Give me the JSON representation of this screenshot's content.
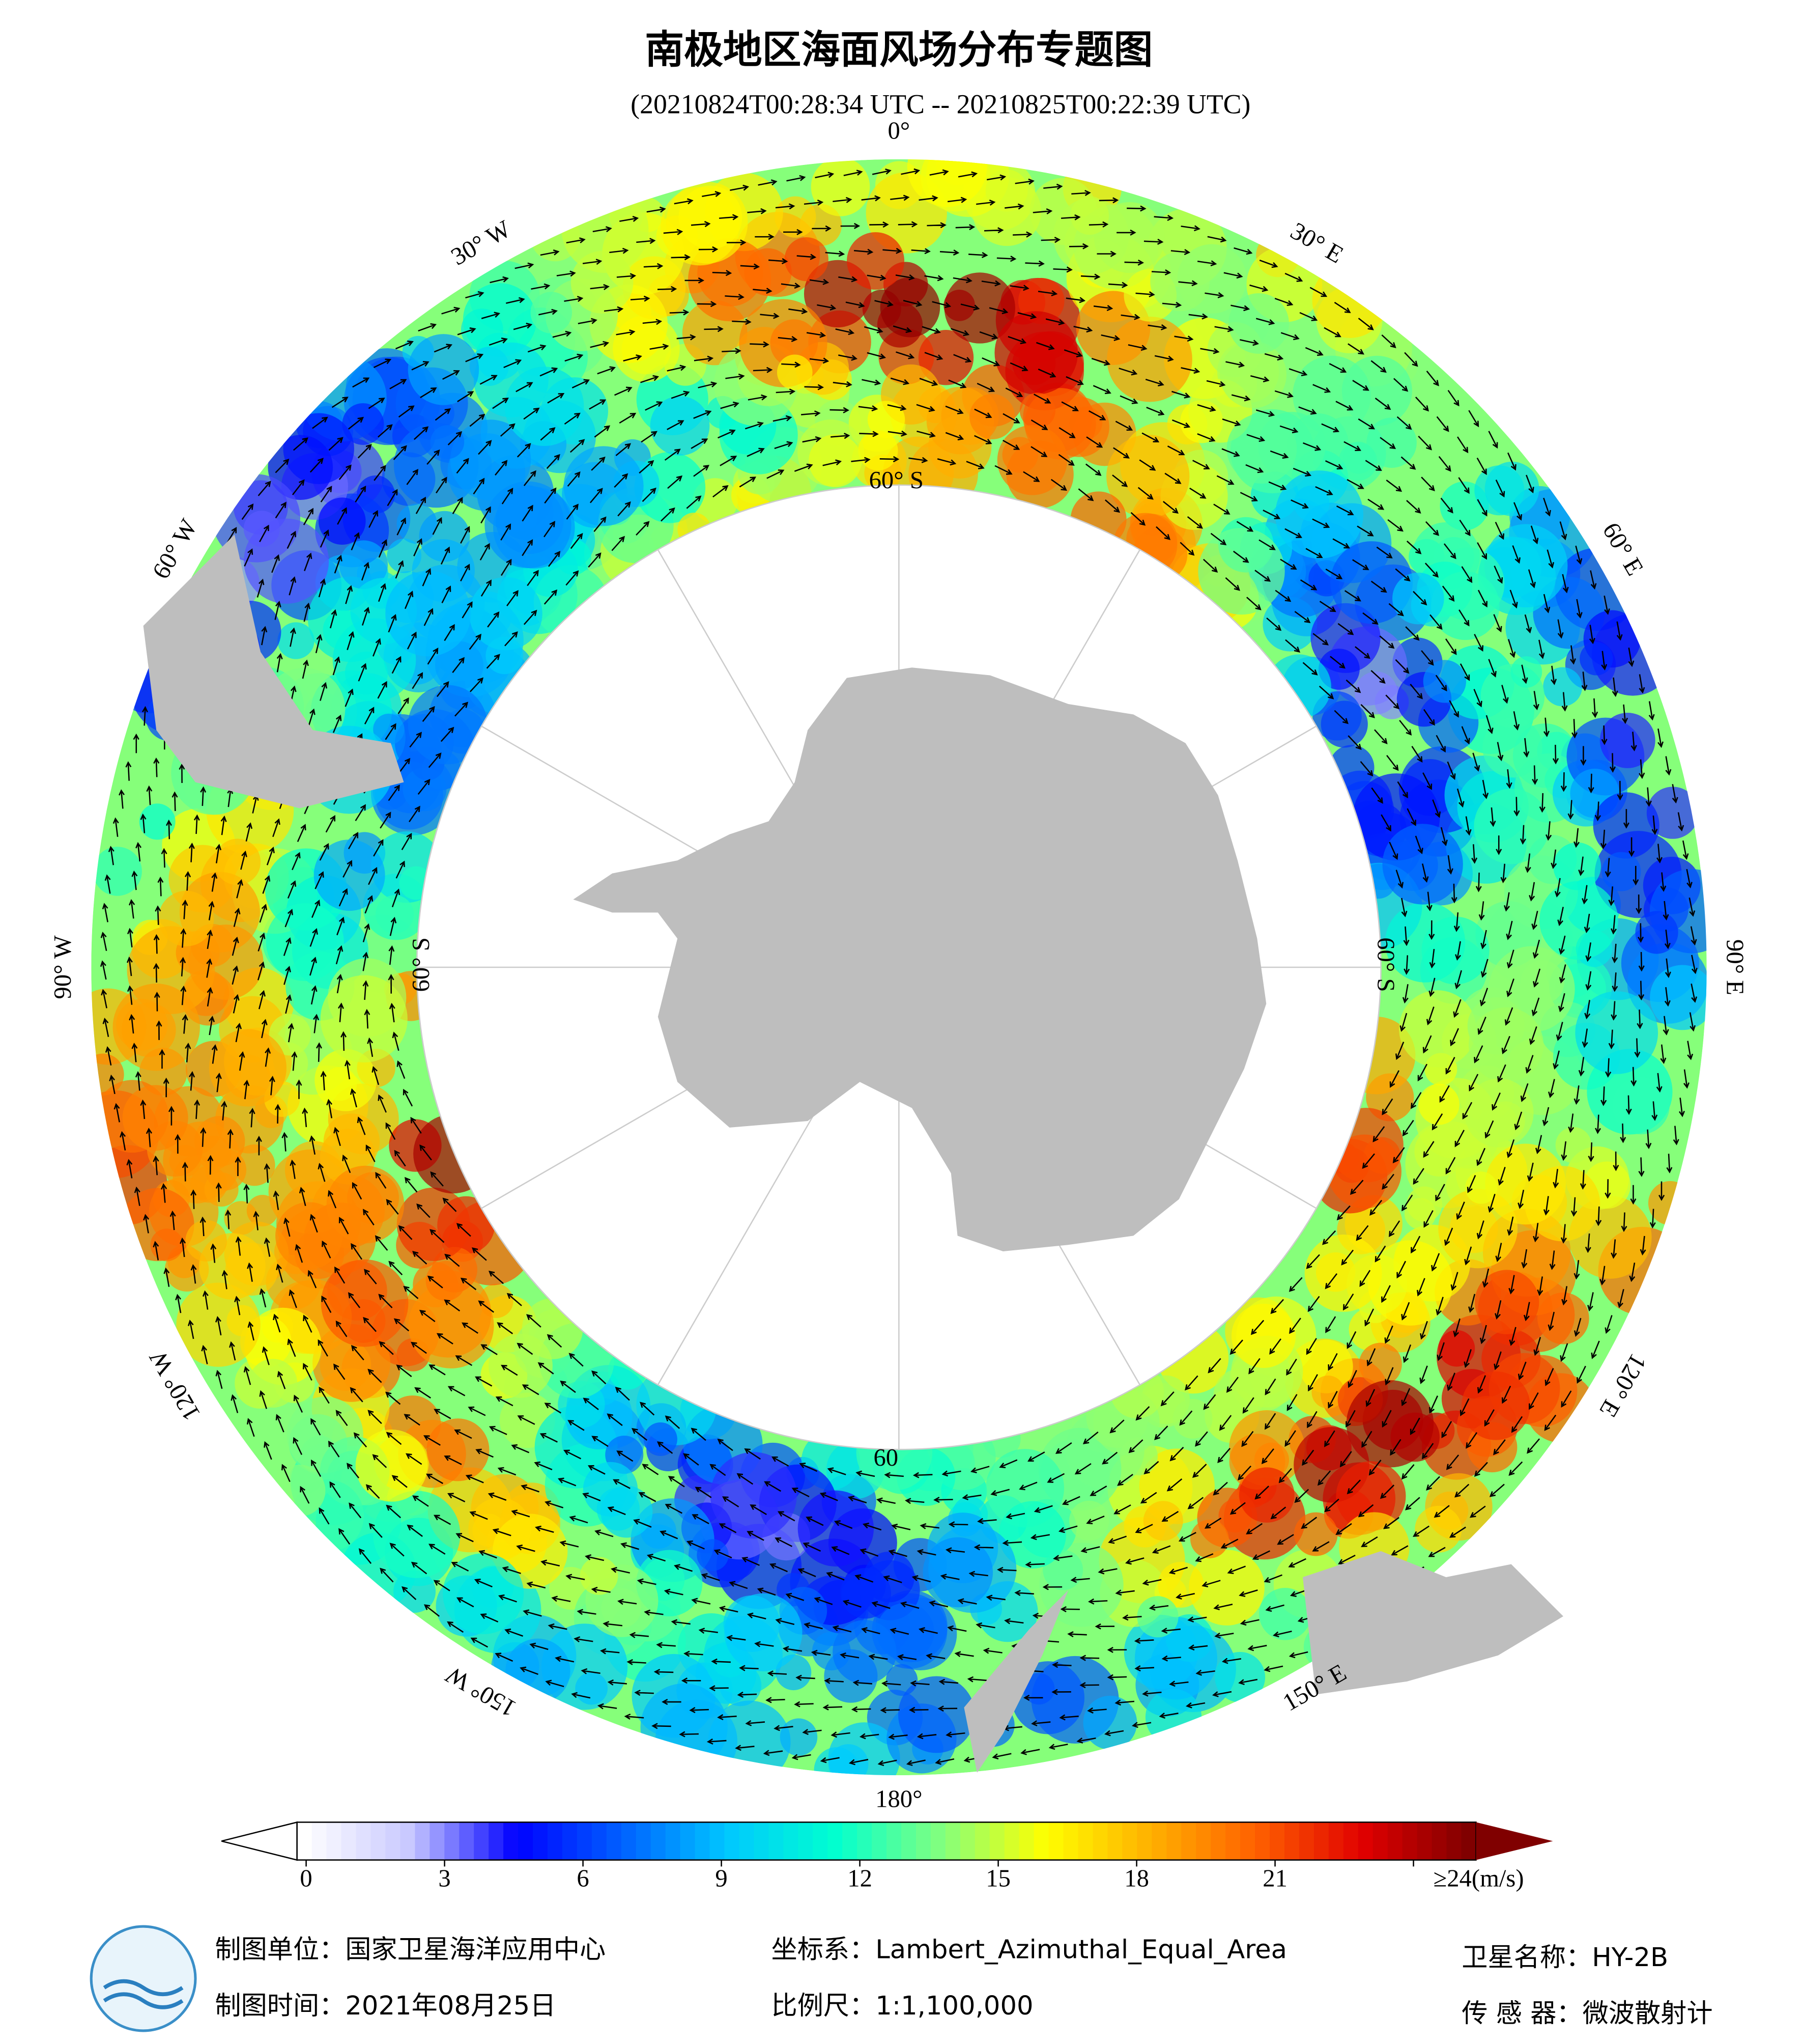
{
  "header": {
    "title": "南极地区海面风场分布专题图",
    "subtitle": "(20210824T00:28:34 UTC -- 20210825T00:22:39 UTC)"
  },
  "map": {
    "projection": "south-polar",
    "lon_labels": [
      {
        "lon": 0,
        "label": "0°"
      },
      {
        "lon": 30,
        "label": "30° E"
      },
      {
        "lon": 60,
        "label": "60° E"
      },
      {
        "lon": 90,
        "label": "90° E"
      },
      {
        "lon": 120,
        "label": "120° E"
      },
      {
        "lon": 150,
        "label": "150° E"
      },
      {
        "lon": 180,
        "label": "180°"
      },
      {
        "lon": -150,
        "label": "150° W"
      },
      {
        "lon": -120,
        "label": "120° W"
      },
      {
        "lon": -90,
        "label": "90° W"
      },
      {
        "lon": -60,
        "label": "60° W"
      },
      {
        "lon": -30,
        "label": "30° W"
      }
    ],
    "lat_labels": [
      "60° S",
      "60° S",
      "60° S",
      "60"
    ],
    "land_color": "#bebebe"
  },
  "colorbar": {
    "lim": [
      0,
      24
    ],
    "ticks": [
      0,
      3,
      6,
      9,
      12,
      15,
      18,
      21,
      {
        "value": 24,
        "label": "≥24(m/s)"
      }
    ],
    "colormap": [
      "#ffffff",
      "#c8c8ff",
      "#0000ff",
      "#0060ff",
      "#00c8ff",
      "#00ffd0",
      "#80ff80",
      "#ffff00",
      "#ffb000",
      "#ff6000",
      "#e00000",
      "#800000"
    ]
  },
  "footer": {
    "unit": "制图单位：国家卫星海洋应用中心",
    "date": "制图时间：2021年08月25日",
    "crs": "坐标系：Lambert_Azimuthal_Equal_Area",
    "scale": "比例尺：1:1,100,000",
    "satellite": "卫星名称：HY-2B",
    "sensor": "传 感 器：微波散射计"
  }
}
